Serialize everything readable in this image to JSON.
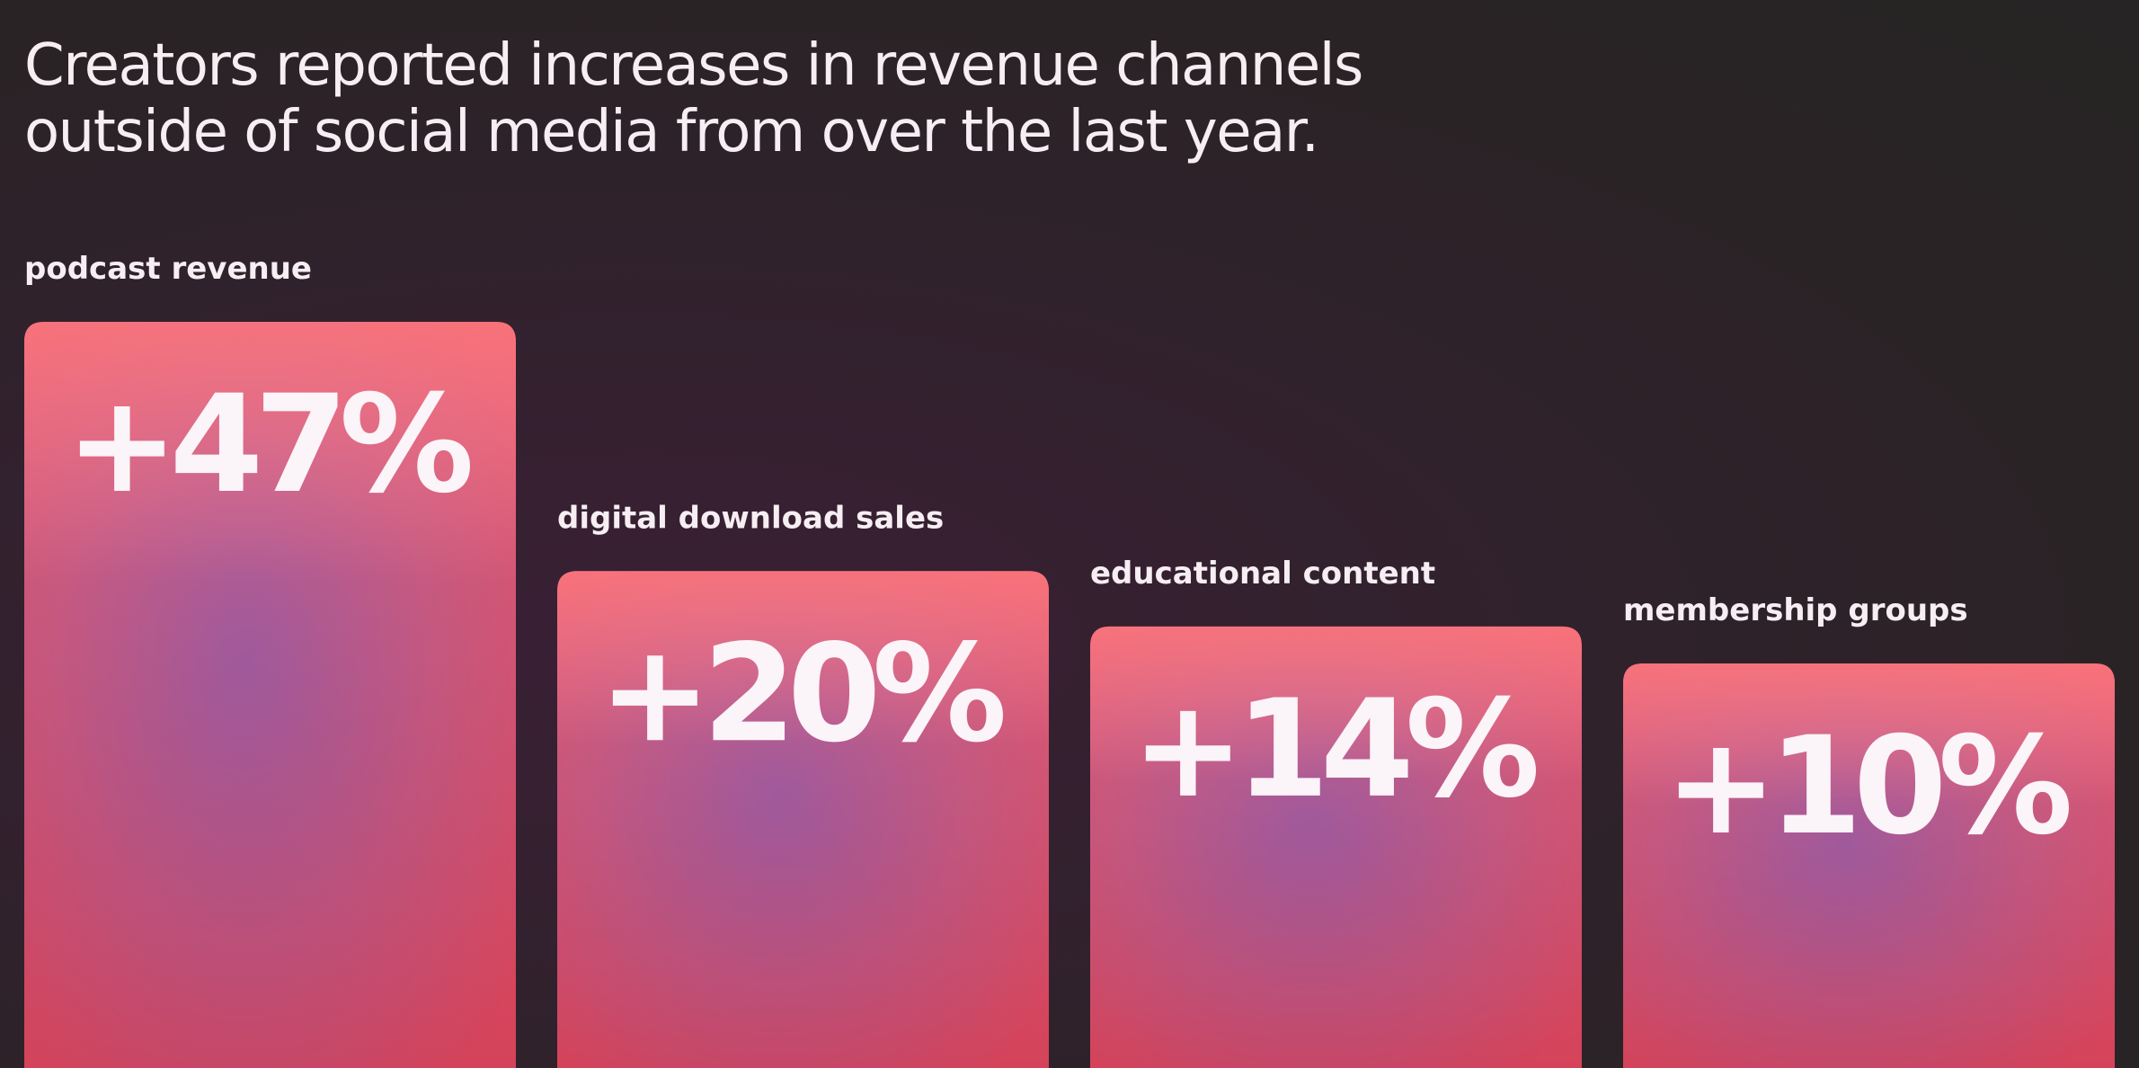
{
  "chart_data": {
    "type": "bar",
    "title": "Creators reported increases in revenue channels outside of social media from over the last year.",
    "categories": [
      "podcast revenue",
      "digital download sales",
      "educational content",
      "membership groups"
    ],
    "values": [
      47,
      20,
      14,
      10
    ],
    "value_labels": [
      "+47%",
      "+20%",
      "+14%",
      "+10%"
    ],
    "color": "#e0566e"
  }
}
